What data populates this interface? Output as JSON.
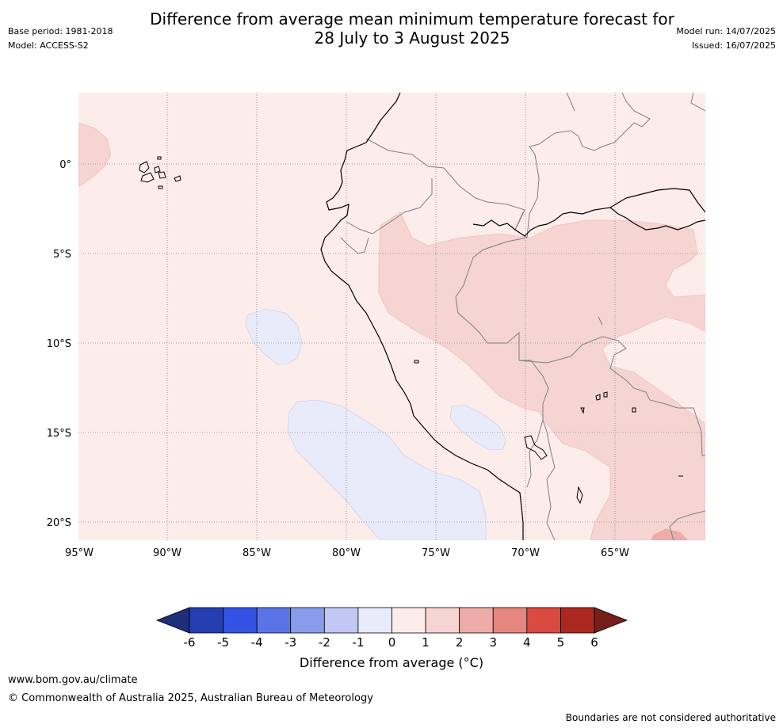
{
  "title": {
    "line1": "Difference from average mean minimum temperature forecast for",
    "line2": "28 July to 3 August 2025"
  },
  "meta_left": {
    "base_period": "Base period: 1981-2018",
    "model": "Model: ACCESS-S2"
  },
  "meta_right": {
    "model_run": "Model run: 14/07/2025",
    "issued": "Issued: 16/07/2025"
  },
  "map": {
    "lon_labels": [
      "95°W",
      "90°W",
      "85°W",
      "80°W",
      "75°W",
      "70°W",
      "65°W"
    ],
    "lat_labels": [
      "0°",
      "5°S",
      "10°S",
      "15°S",
      "20°S"
    ],
    "gridlines": true,
    "lon_range": [
      -95,
      -60
    ],
    "lat_range": [
      -21,
      4
    ]
  },
  "colorbar": {
    "ticks": [
      "-6",
      "-5",
      "-4",
      "-3",
      "-2",
      "-1",
      "0",
      "1",
      "2",
      "3",
      "4",
      "5",
      "6"
    ],
    "colors": [
      "#253fb0",
      "#3352e3",
      "#5a74e6",
      "#8a9bec",
      "#c1c8f4",
      "#e8ebfa",
      "#fcecea",
      "#f5d4d1",
      "#edaca7",
      "#e5867f",
      "#da4a40",
      "#ab2821"
    ],
    "under_color": "#1f2e78",
    "over_color": "#761e18",
    "label": "Difference from average (°C)"
  },
  "footer": {
    "url": "www.bom.gov.au/climate",
    "copyright": "© Commonwealth of Australia 2025, Australian Bureau of Meteorology",
    "disclaimer": "Boundaries are not considered authoritative"
  }
}
